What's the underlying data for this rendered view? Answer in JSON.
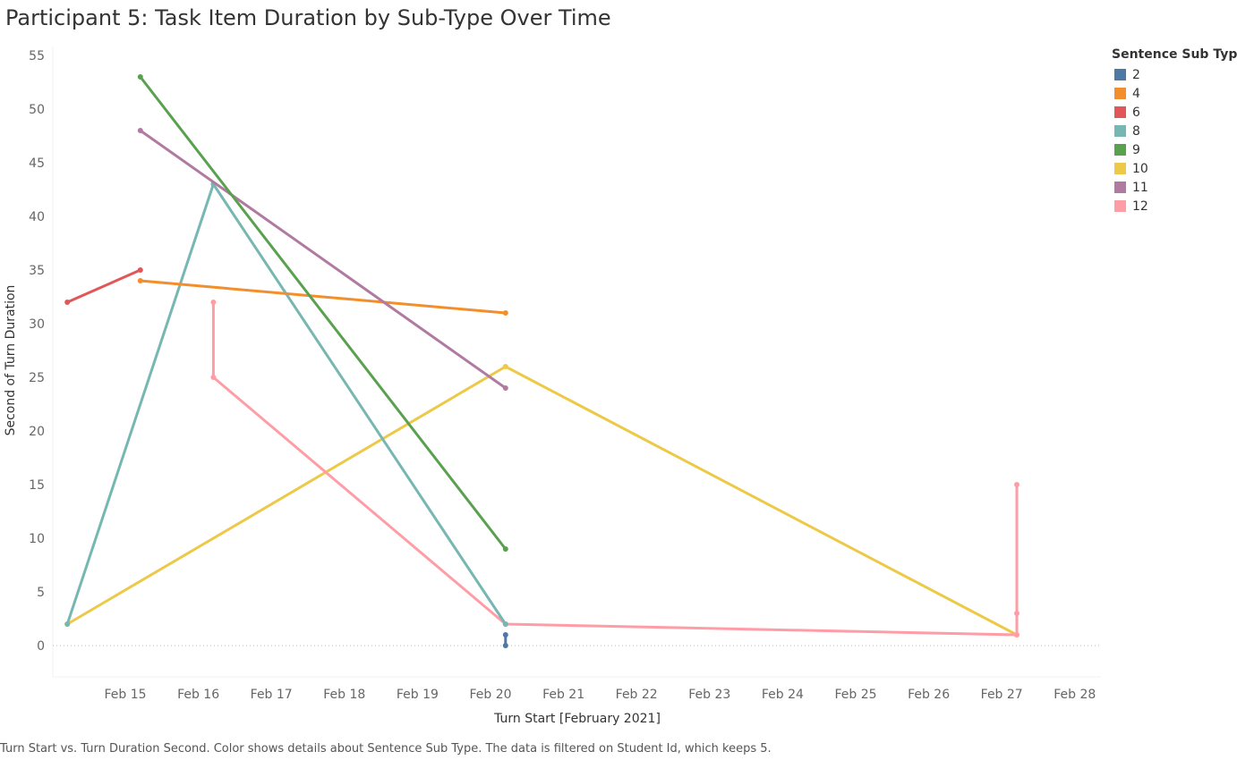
{
  "title": "Participant 5: Task Item Duration by Sub-Type Over Time",
  "caption": "Turn Start vs. Turn Duration Second.  Color shows details about Sentence Sub Type. The data is filtered on Student Id, which keeps 5.",
  "legend": {
    "title": "Sentence Sub Type",
    "items": [
      {
        "label": "2",
        "color": "#4e79a7"
      },
      {
        "label": "4",
        "color": "#f28e2b"
      },
      {
        "label": "6",
        "color": "#e15759"
      },
      {
        "label": "8",
        "color": "#76b7b2"
      },
      {
        "label": "9",
        "color": "#59a14f"
      },
      {
        "label": "10",
        "color": "#edc948"
      },
      {
        "label": "11",
        "color": "#b07aa1"
      },
      {
        "label": "12",
        "color": "#ff9da7"
      }
    ]
  },
  "chart_data": {
    "type": "line",
    "title": "Participant 5: Task Item Duration by Sub-Type Over Time",
    "xlabel": "Turn Start [February 2021]",
    "ylabel": "Second of Turn Duration",
    "x_ticks": [
      "Feb 15",
      "Feb 16",
      "Feb 17",
      "Feb 18",
      "Feb 19",
      "Feb 20",
      "Feb 21",
      "Feb 22",
      "Feb 23",
      "Feb 24",
      "Feb 25",
      "Feb 26",
      "Feb 27",
      "Feb 28"
    ],
    "y_ticks": [
      0,
      5,
      10,
      15,
      20,
      25,
      30,
      35,
      40,
      45,
      50,
      55
    ],
    "ylim": [
      0,
      55
    ],
    "xlim": [
      "2021-02-14 12:00",
      "2021-02-28 18:00"
    ],
    "grid": false,
    "legend_position": "right",
    "series": [
      {
        "name": "2",
        "color": "#4e79a7",
        "points": [
          [
            "2021-02-20 17:00",
            1
          ],
          [
            "2021-02-20 17:00",
            0
          ]
        ]
      },
      {
        "name": "4",
        "color": "#f28e2b",
        "points": [
          [
            "2021-02-15 17:00",
            34
          ],
          [
            "2021-02-20 17:00",
            31
          ]
        ]
      },
      {
        "name": "6",
        "color": "#e15759",
        "points": [
          [
            "2021-02-14 17:00",
            32
          ],
          [
            "2021-02-15 17:00",
            35
          ]
        ]
      },
      {
        "name": "8",
        "color": "#76b7b2",
        "points": [
          [
            "2021-02-14 17:00",
            2
          ],
          [
            "2021-02-16 17:00",
            43
          ],
          [
            "2021-02-20 17:00",
            2
          ]
        ]
      },
      {
        "name": "9",
        "color": "#59a14f",
        "points": [
          [
            "2021-02-15 17:00",
            53
          ],
          [
            "2021-02-20 17:00",
            9
          ]
        ]
      },
      {
        "name": "10",
        "color": "#edc948",
        "points": [
          [
            "2021-02-14 17:00",
            2
          ],
          [
            "2021-02-20 17:00",
            26
          ],
          [
            "2021-02-27 17:00",
            1
          ]
        ]
      },
      {
        "name": "11",
        "color": "#b07aa1",
        "points": [
          [
            "2021-02-15 17:00",
            48
          ],
          [
            "2021-02-20 17:00",
            24
          ]
        ]
      },
      {
        "name": "12",
        "color": "#ff9da7",
        "points": [
          [
            "2021-02-16 17:00",
            32
          ],
          [
            "2021-02-16 17:00",
            25
          ],
          [
            "2021-02-20 17:00",
            2
          ],
          [
            "2021-02-27 17:00",
            1
          ],
          [
            "2021-02-27 17:00",
            3
          ],
          [
            "2021-02-27 17:00",
            15
          ]
        ]
      }
    ]
  }
}
